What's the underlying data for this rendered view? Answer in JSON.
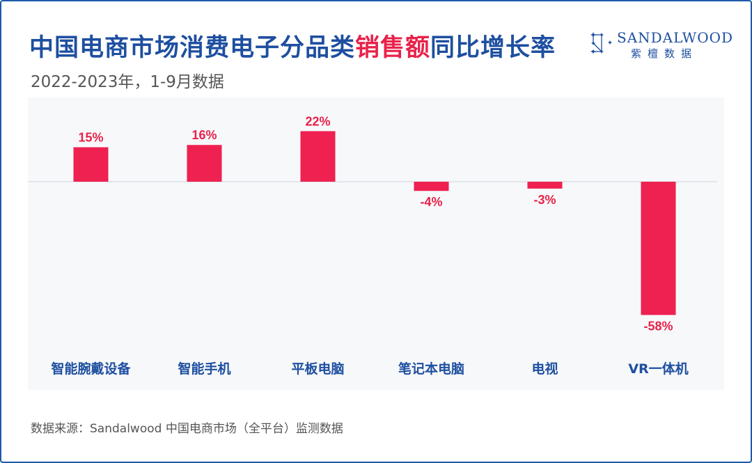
{
  "header": {
    "title_part1": "中国电商市场消费电子分品类",
    "title_highlight": "销售额",
    "title_part2": "同比增长率",
    "subtitle": "2022-2023年，1-9月数据"
  },
  "logo": {
    "name": "SANDALWOOD",
    "cn_name": "紫檀数据"
  },
  "footer": {
    "source": "数据来源：Sandalwood 中国电商市场（全平台）监测数据"
  },
  "colors": {
    "bar": "#ee2150",
    "label": "#e8224a",
    "category": "#1e4fa0",
    "title": "#1e4fa0"
  },
  "chart_data": {
    "type": "bar",
    "categories": [
      "智能腕戴设备",
      "智能手机",
      "平板电脑",
      "笔记本电脑",
      "电视",
      "VR一体机"
    ],
    "values": [
      15,
      16,
      22,
      -4,
      -3,
      -58
    ],
    "data_labels": [
      "15%",
      "16%",
      "22%",
      "-4%",
      "-3%",
      "-58%"
    ],
    "unit": "%",
    "ylim": [
      -60,
      25
    ],
    "grid": false,
    "legend": "none"
  }
}
